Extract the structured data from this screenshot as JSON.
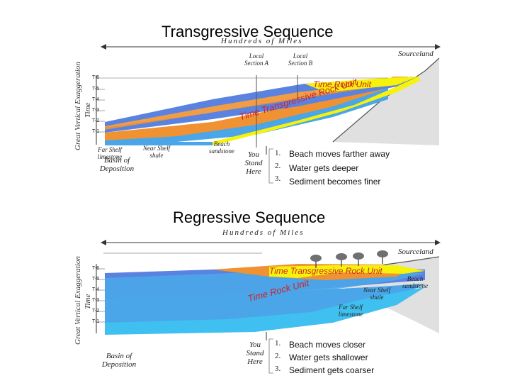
{
  "transgressive": {
    "title": "Transgressive Sequence",
    "scale_label": "Hundreds of Miles",
    "side_label": "Great Vertical Exaggeration",
    "time_axis_label": "Time",
    "ticks": [
      "T-6",
      "T-5",
      "T-4",
      "T-3",
      "T-2",
      "T-1"
    ],
    "section_a": "Local Section A",
    "section_b": "Local Section B",
    "sourceland": "Sourceland",
    "time_rock_unit": "Time Rock Unit",
    "time_transgressive_rock_unit": "Time Transgressive Rock Unit",
    "far_shelf": "Far Shelf limestone",
    "near_shelf": "Near Shelf shale",
    "beach": "Beach sandstone",
    "basin": "Basin of Deposition",
    "you_stand_here": "You Stand Here",
    "items": [
      "Beach moves farther away",
      "Water gets deeper",
      "Sediment becomes finer"
    ]
  },
  "regressive": {
    "title": "Regressive Sequence",
    "scale_label": "Hundreds of Miles",
    "side_label": "Great Vertical Exaggeration",
    "time_axis_label": "Time",
    "ticks": [
      "T-6",
      "T-5",
      "T-4",
      "T-3",
      "T-2",
      "T-1"
    ],
    "sourceland": "Sourceland",
    "time_transgressive_rock_unit": "Time Transgressive Rock Unit",
    "time_rock_unit": "Time Rock Unit",
    "beach": "Beach sandstone",
    "near_shelf": "Near Shelf shale",
    "far_shelf": "Far Shelf limestone",
    "basin": "Basin of Deposition",
    "you_stand_here": "You Stand Here",
    "items": [
      "Beach moves closer",
      "Water gets shallower",
      "Sediment gets coarser"
    ]
  },
  "list_numbers": [
    "1.",
    "2.",
    "3."
  ],
  "colors": {
    "limestone": "#4aa6e8",
    "shale": "#f09232",
    "sandstone": "#f6f20a",
    "shale_blue": "#5a82e0",
    "source": "#d8d8d8",
    "annotation": "#d0202a"
  }
}
